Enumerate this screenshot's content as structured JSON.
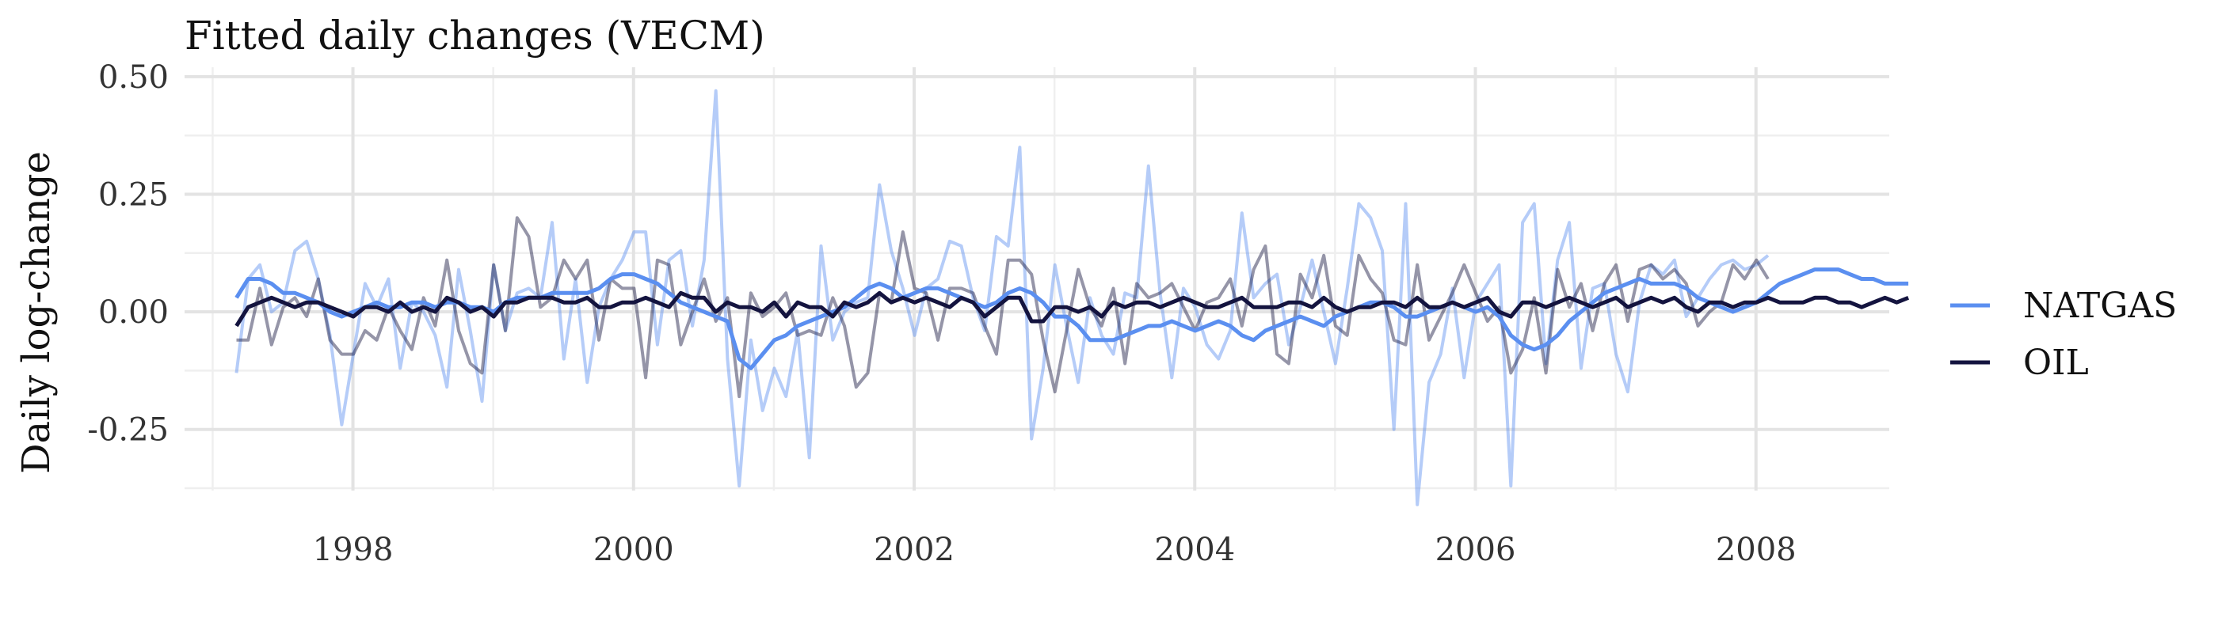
{
  "chart_data": {
    "type": "line",
    "title": "Fitted daily changes (VECM)",
    "xlabel": "",
    "ylabel": "Daily log-change",
    "xlim": [
      1996.8,
      2008.95
    ],
    "ylim": [
      -0.38,
      0.52
    ],
    "x_ticks": [
      1998,
      2000,
      2002,
      2004,
      2006,
      2008
    ],
    "x_tick_labels": [
      "1998",
      "2000",
      "2002",
      "2004",
      "2006",
      "2008"
    ],
    "y_ticks": [
      0.5,
      0.25,
      0.0,
      -0.25
    ],
    "y_tick_labels": [
      "0.50",
      "0.25",
      "0.00",
      "-0.25"
    ],
    "grid": true,
    "legend_position": "right",
    "x_start": 1997.17,
    "x_step": 0.08333,
    "series": [
      {
        "name": "NATGAS",
        "color": "#5b8ff0",
        "fitted": [
          0.03,
          0.07,
          0.07,
          0.06,
          0.04,
          0.04,
          0.03,
          0.02,
          0.0,
          -0.01,
          0.0,
          0.01,
          0.02,
          0.01,
          0.01,
          0.02,
          0.02,
          0.01,
          0.02,
          0.02,
          0.01,
          0.01,
          0.0,
          0.02,
          0.03,
          0.03,
          0.03,
          0.04,
          0.04,
          0.04,
          0.04,
          0.05,
          0.07,
          0.08,
          0.08,
          0.07,
          0.06,
          0.04,
          0.02,
          0.01,
          0.0,
          -0.01,
          -0.02,
          -0.1,
          -0.12,
          -0.09,
          -0.06,
          -0.05,
          -0.03,
          -0.02,
          -0.01,
          0.0,
          0.01,
          0.03,
          0.05,
          0.06,
          0.05,
          0.03,
          0.04,
          0.05,
          0.05,
          0.04,
          0.03,
          0.02,
          0.01,
          0.02,
          0.04,
          0.05,
          0.04,
          0.02,
          -0.01,
          -0.01,
          -0.03,
          -0.06,
          -0.06,
          -0.06,
          -0.05,
          -0.04,
          -0.03,
          -0.03,
          -0.02,
          -0.03,
          -0.04,
          -0.03,
          -0.02,
          -0.03,
          -0.05,
          -0.06,
          -0.04,
          -0.03,
          -0.02,
          -0.01,
          -0.02,
          -0.03,
          -0.01,
          0.0,
          0.01,
          0.02,
          0.02,
          0.01,
          -0.01,
          -0.01,
          0.0,
          0.01,
          0.02,
          0.01,
          0.0,
          0.01,
          -0.01,
          -0.05,
          -0.07,
          -0.08,
          -0.07,
          -0.05,
          -0.02,
          0.0,
          0.02,
          0.04,
          0.05,
          0.06,
          0.07,
          0.06,
          0.06,
          0.06,
          0.05,
          0.03,
          0.02,
          0.01,
          0.0,
          0.01,
          0.02,
          0.04,
          0.06,
          0.07,
          0.08,
          0.09,
          0.09,
          0.09,
          0.08,
          0.07,
          0.07,
          0.06,
          0.06,
          0.06
        ],
        "actual": [
          -0.13,
          0.07,
          0.1,
          0.0,
          0.02,
          0.13,
          0.15,
          0.07,
          -0.05,
          -0.24,
          -0.09,
          0.06,
          0.01,
          0.07,
          -0.12,
          0.02,
          0.0,
          -0.05,
          -0.16,
          0.09,
          -0.04,
          -0.19,
          0.1,
          -0.04,
          0.04,
          0.05,
          0.03,
          0.19,
          -0.1,
          0.07,
          -0.15,
          0.01,
          0.07,
          0.11,
          0.17,
          0.17,
          -0.07,
          0.11,
          0.13,
          -0.03,
          0.11,
          0.47,
          -0.1,
          -0.37,
          -0.06,
          -0.21,
          -0.12,
          -0.18,
          -0.04,
          -0.31,
          0.14,
          -0.06,
          0.0,
          0.02,
          0.03,
          0.27,
          0.13,
          0.05,
          -0.05,
          0.05,
          0.07,
          0.15,
          0.14,
          0.03,
          -0.04,
          0.16,
          0.14,
          0.35,
          -0.27,
          -0.12,
          0.1,
          -0.03,
          -0.15,
          0.03,
          -0.05,
          -0.09,
          0.04,
          0.03,
          0.31,
          0.04,
          -0.14,
          0.05,
          0.01,
          -0.07,
          -0.1,
          -0.04,
          0.21,
          0.03,
          0.06,
          0.08,
          -0.07,
          0.01,
          0.11,
          0.0,
          -0.11,
          0.05,
          0.23,
          0.2,
          0.13,
          -0.25,
          0.23,
          -0.41,
          -0.15,
          -0.09,
          0.05,
          -0.14,
          0.02,
          0.06,
          0.1,
          -0.37,
          0.19,
          0.23,
          -0.11,
          0.11,
          0.19,
          -0.12,
          0.05,
          0.06,
          -0.09,
          -0.17,
          0.02,
          0.1,
          0.08,
          0.11,
          -0.01,
          0.03,
          0.07,
          0.1,
          0.11,
          0.09,
          0.1,
          0.12
        ]
      },
      {
        "name": "OIL",
        "color": "#14143f",
        "fitted": [
          -0.03,
          0.01,
          0.02,
          0.03,
          0.02,
          0.01,
          0.02,
          0.02,
          0.01,
          0.0,
          -0.01,
          0.01,
          0.01,
          0.0,
          0.02,
          0.0,
          0.01,
          0.0,
          0.03,
          0.02,
          0.0,
          0.01,
          -0.01,
          0.02,
          0.02,
          0.03,
          0.03,
          0.03,
          0.02,
          0.02,
          0.03,
          0.01,
          0.01,
          0.02,
          0.02,
          0.03,
          0.02,
          0.01,
          0.04,
          0.03,
          0.03,
          0.0,
          0.02,
          0.01,
          0.01,
          0.0,
          0.02,
          -0.01,
          0.02,
          0.01,
          0.01,
          -0.01,
          0.02,
          0.01,
          0.02,
          0.04,
          0.02,
          0.03,
          0.02,
          0.03,
          0.02,
          0.01,
          0.03,
          0.02,
          -0.01,
          0.01,
          0.03,
          0.03,
          -0.02,
          -0.02,
          0.01,
          0.01,
          0.0,
          0.01,
          -0.01,
          0.02,
          0.01,
          0.02,
          0.02,
          0.01,
          0.02,
          0.03,
          0.02,
          0.01,
          0.01,
          0.02,
          0.03,
          0.01,
          0.01,
          0.01,
          0.02,
          0.02,
          0.01,
          0.03,
          0.01,
          0.0,
          0.01,
          0.01,
          0.02,
          0.02,
          0.01,
          0.03,
          0.01,
          0.01,
          0.02,
          0.01,
          0.02,
          0.03,
          0.0,
          -0.01,
          0.02,
          0.02,
          0.01,
          0.02,
          0.03,
          0.02,
          0.01,
          0.02,
          0.03,
          0.01,
          0.02,
          0.03,
          0.02,
          0.03,
          0.01,
          0.0,
          0.02,
          0.02,
          0.01,
          0.02,
          0.02,
          0.03,
          0.02,
          0.02,
          0.02,
          0.03,
          0.03,
          0.02,
          0.02,
          0.01,
          0.02,
          0.03,
          0.02,
          0.03
        ],
        "actual": [
          -0.06,
          -0.06,
          0.05,
          -0.07,
          0.01,
          0.03,
          -0.01,
          0.07,
          -0.06,
          -0.09,
          -0.09,
          -0.04,
          -0.06,
          0.01,
          -0.04,
          -0.08,
          0.03,
          -0.03,
          0.11,
          -0.04,
          -0.11,
          -0.13,
          0.1,
          -0.04,
          0.2,
          0.16,
          0.01,
          0.03,
          0.11,
          0.07,
          0.11,
          -0.06,
          0.07,
          0.05,
          0.05,
          -0.14,
          0.11,
          0.1,
          -0.07,
          0.0,
          0.07,
          -0.02,
          0.03,
          -0.18,
          0.04,
          -0.01,
          0.01,
          0.04,
          -0.05,
          -0.04,
          -0.05,
          0.03,
          -0.03,
          -0.16,
          -0.13,
          0.04,
          0.02,
          0.17,
          0.05,
          0.04,
          -0.06,
          0.05,
          0.05,
          0.04,
          -0.03,
          -0.09,
          0.11,
          0.11,
          0.08,
          -0.06,
          -0.17,
          -0.04,
          0.09,
          0.01,
          -0.03,
          0.05,
          -0.11,
          0.06,
          0.03,
          0.04,
          0.06,
          0.01,
          -0.04,
          0.02,
          0.03,
          0.07,
          -0.03,
          0.09,
          0.14,
          -0.09,
          -0.11,
          0.08,
          0.03,
          0.12,
          -0.03,
          -0.05,
          0.12,
          0.07,
          0.04,
          -0.06,
          -0.07,
          0.1,
          -0.06,
          -0.01,
          0.04,
          0.1,
          0.04,
          -0.02,
          0.01,
          -0.13,
          -0.08,
          0.03,
          -0.13,
          0.09,
          0.01,
          0.06,
          -0.04,
          0.06,
          0.1,
          -0.02,
          0.09,
          0.1,
          0.07,
          0.09,
          0.06,
          -0.03,
          0.0,
          0.02,
          0.1,
          0.07,
          0.11,
          0.07
        ]
      }
    ]
  }
}
